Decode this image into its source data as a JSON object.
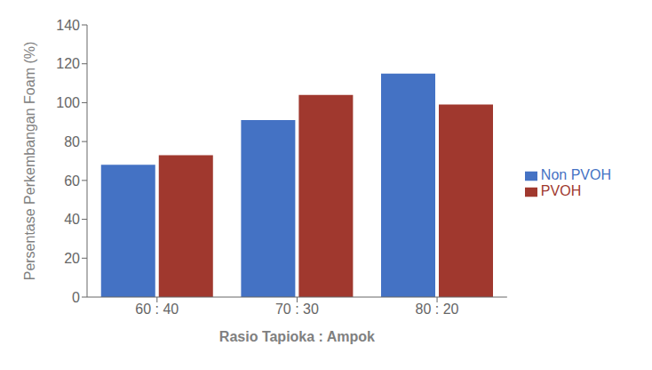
{
  "chart_data": {
    "type": "bar",
    "categories": [
      "60 : 40",
      "70 : 30",
      "80 : 20"
    ],
    "series": [
      {
        "name": "Non PVOH",
        "color": "#4472C4",
        "values": [
          68,
          91,
          115
        ]
      },
      {
        "name": "PVOH",
        "color": "#A0382E",
        "values": [
          73,
          104,
          99
        ]
      }
    ],
    "xlabel": "Rasio Tapioka : Ampok",
    "ylabel": "Persentase Perkembangan Foam (%)",
    "ylim": [
      0,
      140
    ],
    "yticks": [
      0,
      20,
      40,
      60,
      80,
      100,
      120,
      140
    ],
    "grid": false,
    "legend": "right"
  }
}
